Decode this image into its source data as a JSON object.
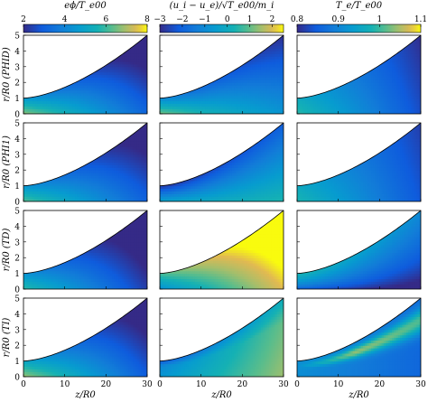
{
  "chart_data": {
    "type": "heatmap",
    "layout": {
      "rows": 4,
      "cols": 3
    },
    "columns": [
      {
        "key": "phi",
        "colorbar_label": "eϕ/T_e00",
        "colorbar_ticks": [
          "2",
          "4",
          "6",
          "8"
        ],
        "range": [
          2,
          8
        ]
      },
      {
        "key": "u",
        "colorbar_label": "(u_i − u_e)/√T_e00/m_i",
        "colorbar_ticks": [
          "−3",
          "−2",
          "−1",
          "0",
          "1",
          "2"
        ],
        "range": [
          -3,
          2.5
        ]
      },
      {
        "key": "Te",
        "colorbar_label": "T_e/T_e00",
        "colorbar_ticks": [
          "0.8",
          "0.9",
          "1",
          "1.1"
        ],
        "range": [
          0.8,
          1.1
        ]
      }
    ],
    "rows": [
      {
        "case": "PHID",
        "y_label": "r/R0  (PHID)"
      },
      {
        "case": "PHI1",
        "y_label": "r/R0  (PHI1)"
      },
      {
        "case": "TD",
        "y_label": "r/R0  (TD)"
      },
      {
        "case": "TI",
        "y_label": "r/R0  (TI)"
      }
    ],
    "xlabel": "z/R0",
    "ylabel": "r/R0",
    "x_ticks": [
      "0",
      "10",
      "20",
      "30"
    ],
    "y_ticks": [
      "0",
      "1",
      "2",
      "3",
      "4",
      "5"
    ],
    "xlim": [
      0,
      30
    ],
    "ylim": [
      0,
      5
    ],
    "colormap": "parula",
    "boundary_curve": {
      "r_at_z0": 1.0,
      "r_at_z30": 5.0
    }
  }
}
